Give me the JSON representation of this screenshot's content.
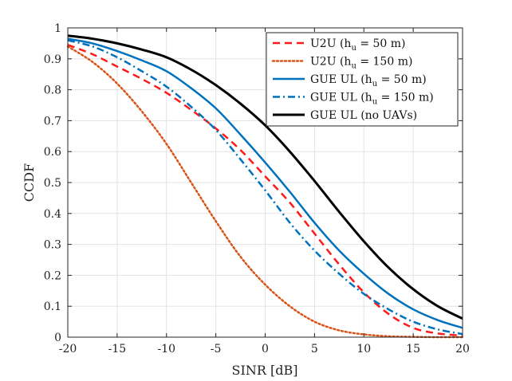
{
  "chart_data": {
    "type": "line",
    "xlabel": "SINR [dB]",
    "ylabel": "CCDF",
    "xlim": [
      -20,
      20
    ],
    "ylim": [
      0,
      1
    ],
    "xticks": [
      -20,
      -15,
      -10,
      -5,
      0,
      5,
      10,
      15,
      20
    ],
    "yticks": [
      0,
      0.1,
      0.2,
      0.3,
      0.4,
      0.5,
      0.6,
      0.7,
      0.8,
      0.9,
      1
    ],
    "xtick_labels": [
      "-20",
      "-15",
      "-10",
      "-5",
      "0",
      "5",
      "10",
      "15",
      "20"
    ],
    "ytick_labels": [
      "0",
      "0.1",
      "0.2",
      "0.3",
      "0.4",
      "0.5",
      "0.6",
      "0.7",
      "0.8",
      "0.9",
      "1"
    ],
    "grid": true,
    "legend_position": "top-right",
    "series": [
      {
        "name": "U2U (h_u = 50 m)",
        "legend_main": "U2U (h",
        "legend_sub": "u",
        "legend_rest": " = 50 m)",
        "color": "#ff1a1a",
        "line_style": "dashed",
        "x": [
          -20,
          -17.5,
          -15,
          -12.5,
          -10,
          -7.5,
          -5,
          -2.5,
          0,
          2.5,
          5,
          7.5,
          10,
          12.5,
          15,
          17.5,
          20
        ],
        "y": [
          0.945,
          0.915,
          0.875,
          0.835,
          0.79,
          0.735,
          0.675,
          0.605,
          0.52,
          0.435,
          0.335,
          0.235,
          0.145,
          0.075,
          0.03,
          0.012,
          0.005
        ]
      },
      {
        "name": "U2U (h_u = 150 m)",
        "legend_main": "U2U (h",
        "legend_sub": "u",
        "legend_rest": " = 150 m)",
        "color": "#d95319",
        "line_style": "dotted",
        "x": [
          -20,
          -17.5,
          -15,
          -12.5,
          -10,
          -7.5,
          -5,
          -2.5,
          0,
          2.5,
          5,
          7.5,
          10,
          12.5,
          15,
          17.5,
          20
        ],
        "y": [
          0.94,
          0.89,
          0.82,
          0.73,
          0.625,
          0.5,
          0.375,
          0.26,
          0.17,
          0.1,
          0.05,
          0.022,
          0.009,
          0.003,
          0.001,
          0,
          0
        ]
      },
      {
        "name": "GUE UL (h_u = 50 m)",
        "legend_main": "GUE UL (h",
        "legend_sub": "u",
        "legend_rest": " = 50 m)",
        "color": "#0072bd",
        "line_style": "solid",
        "x": [
          -20,
          -17.5,
          -15,
          -12.5,
          -10,
          -7.5,
          -5,
          -2.5,
          0,
          2.5,
          5,
          7.5,
          10,
          12.5,
          15,
          17.5,
          20
        ],
        "y": [
          0.965,
          0.95,
          0.925,
          0.895,
          0.86,
          0.805,
          0.74,
          0.655,
          0.565,
          0.47,
          0.37,
          0.28,
          0.205,
          0.14,
          0.09,
          0.055,
          0.03
        ]
      },
      {
        "name": "GUE UL (h_u = 150 m)",
        "legend_main": "GUE UL (h",
        "legend_sub": "u",
        "legend_rest": " = 150 m)",
        "color": "#0072bd",
        "line_style": "dashdot",
        "x": [
          -20,
          -17.5,
          -15,
          -12.5,
          -10,
          -7.5,
          -5,
          -2.5,
          0,
          2.5,
          5,
          7.5,
          10,
          12.5,
          15,
          17.5,
          20
        ],
        "y": [
          0.96,
          0.94,
          0.905,
          0.86,
          0.81,
          0.745,
          0.67,
          0.575,
          0.475,
          0.37,
          0.28,
          0.205,
          0.14,
          0.09,
          0.05,
          0.025,
          0.01
        ]
      },
      {
        "name": "GUE UL (no UAVs)",
        "legend_main": "GUE UL (no UAVs)",
        "legend_sub": "",
        "legend_rest": "",
        "color": "#000000",
        "line_style": "solid",
        "x": [
          -20,
          -17.5,
          -15,
          -12.5,
          -10,
          -7.5,
          -5,
          -2.5,
          0,
          2.5,
          5,
          7.5,
          10,
          12.5,
          15,
          17.5,
          20
        ],
        "y": [
          0.975,
          0.965,
          0.95,
          0.93,
          0.905,
          0.865,
          0.815,
          0.755,
          0.685,
          0.6,
          0.505,
          0.405,
          0.31,
          0.225,
          0.155,
          0.1,
          0.06
        ]
      }
    ]
  }
}
